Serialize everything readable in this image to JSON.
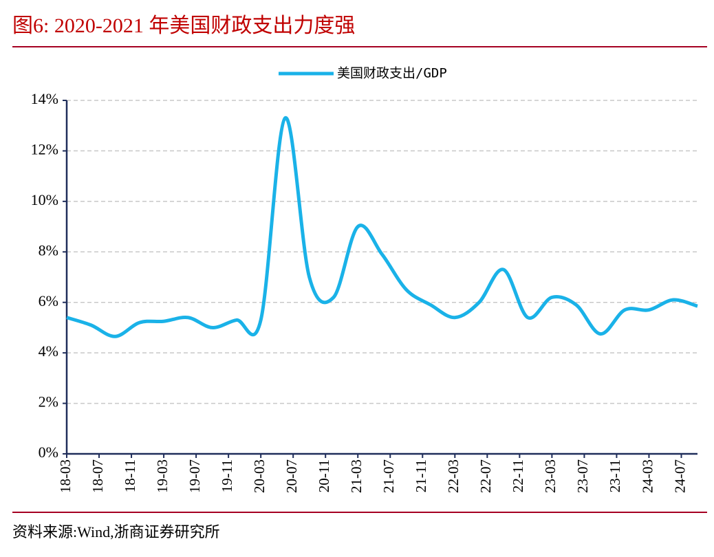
{
  "chart_data": {
    "type": "line",
    "title": "图6: 2020-2021 年美国财政支出力度强",
    "source": "资料来源:Wind,浙商证券研究所",
    "x": [
      "18-03",
      "18-06",
      "18-09",
      "18-12",
      "19-03",
      "19-06",
      "19-09",
      "19-12",
      "20-03",
      "20-06",
      "20-09",
      "20-12",
      "21-03",
      "21-06",
      "21-09",
      "21-12",
      "22-03",
      "22-06",
      "22-09",
      "22-12",
      "23-03",
      "23-06",
      "23-09",
      "23-12",
      "24-03",
      "24-06",
      "24-09"
    ],
    "series": [
      {
        "name": "美国财政支出/GDP",
        "color": "#1ab2e8",
        "values": [
          5.4,
          5.1,
          4.65,
          5.2,
          5.25,
          5.4,
          5.0,
          5.3,
          5.3,
          13.3,
          7.0,
          6.2,
          9.0,
          7.9,
          6.5,
          5.9,
          5.4,
          6.0,
          7.3,
          5.4,
          6.2,
          5.9,
          4.75,
          5.7,
          5.7,
          6.1,
          5.85
        ]
      }
    ],
    "xticks": [
      "18-03",
      "18-07",
      "18-11",
      "19-03",
      "19-07",
      "19-11",
      "20-03",
      "20-07",
      "20-11",
      "21-03",
      "21-07",
      "21-11",
      "22-03",
      "22-07",
      "22-11",
      "23-03",
      "23-07",
      "23-11",
      "24-03",
      "24-07"
    ],
    "xlim": [
      "18-03",
      "24-09"
    ],
    "ylim": [
      0,
      14
    ],
    "yticks": [
      {
        "value": 0,
        "label": "0%"
      },
      {
        "value": 2,
        "label": "2%"
      },
      {
        "value": 4,
        "label": "4%"
      },
      {
        "value": 6,
        "label": "6%"
      },
      {
        "value": 8,
        "label": "8%"
      },
      {
        "value": 10,
        "label": "10%"
      },
      {
        "value": 12,
        "label": "12%"
      },
      {
        "value": 14,
        "label": "14%"
      }
    ],
    "grid": true,
    "legend": "top"
  }
}
